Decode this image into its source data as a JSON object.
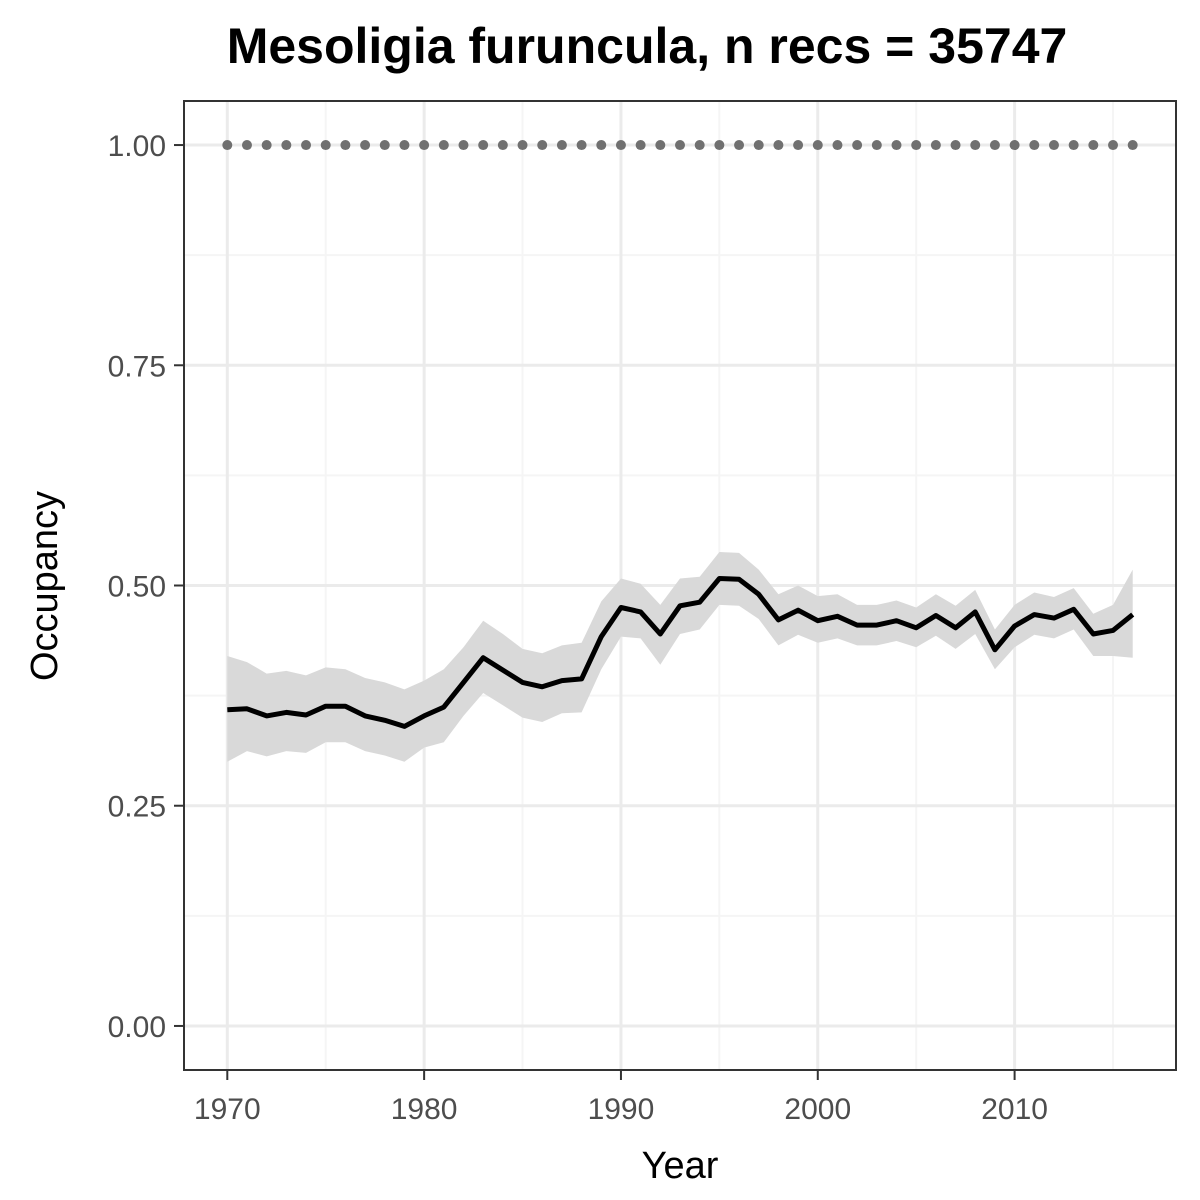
{
  "chart_data": {
    "type": "line",
    "title": "Mesoligia furuncula, n recs = 35747",
    "xlabel": "Year",
    "ylabel": "Occupancy",
    "xlim": [
      1967.8,
      2018.2
    ],
    "ylim": [
      -0.05,
      1.05
    ],
    "x_ticks": [
      1970,
      1980,
      1990,
      2000,
      2010
    ],
    "x_tick_labels": [
      "1970",
      "1980",
      "1990",
      "2000",
      "2010"
    ],
    "y_ticks": [
      0,
      0.25,
      0.5,
      0.75,
      1.0
    ],
    "y_tick_labels": [
      "0.00",
      "0.25",
      "0.50",
      "0.75",
      "1.00"
    ],
    "x_minor_grid": [
      1975,
      1985,
      1995,
      2005,
      2015
    ],
    "y_minor_grid": [
      0.125,
      0.375,
      0.625,
      0.875
    ],
    "grid": true,
    "x": [
      1970,
      1971,
      1972,
      1973,
      1974,
      1975,
      1976,
      1977,
      1978,
      1979,
      1980,
      1981,
      1982,
      1983,
      1984,
      1985,
      1986,
      1987,
      1988,
      1989,
      1990,
      1991,
      1992,
      1993,
      1994,
      1995,
      1996,
      1997,
      1998,
      1999,
      2000,
      2001,
      2002,
      2003,
      2004,
      2005,
      2006,
      2007,
      2008,
      2009,
      2010,
      2011,
      2012,
      2013,
      2014,
      2015,
      2016
    ],
    "series": [
      {
        "role": "mean",
        "color": "#000000",
        "values": [
          0.359,
          0.36,
          0.352,
          0.356,
          0.353,
          0.363,
          0.363,
          0.352,
          0.347,
          0.34,
          0.352,
          0.362,
          0.39,
          0.418,
          0.404,
          0.39,
          0.385,
          0.392,
          0.394,
          0.442,
          0.475,
          0.47,
          0.445,
          0.477,
          0.481,
          0.508,
          0.507,
          0.49,
          0.461,
          0.472,
          0.46,
          0.465,
          0.455,
          0.455,
          0.46,
          0.452,
          0.466,
          0.452,
          0.47,
          0.427,
          0.454,
          0.467,
          0.463,
          0.473,
          0.445,
          0.449,
          0.467
        ]
      },
      {
        "role": "credible-interval-lower",
        "color": "#d9d9d9",
        "values": [
          0.3,
          0.312,
          0.306,
          0.312,
          0.31,
          0.322,
          0.322,
          0.312,
          0.307,
          0.3,
          0.316,
          0.322,
          0.352,
          0.378,
          0.364,
          0.35,
          0.345,
          0.355,
          0.356,
          0.405,
          0.442,
          0.44,
          0.41,
          0.445,
          0.45,
          0.478,
          0.477,
          0.462,
          0.432,
          0.444,
          0.435,
          0.44,
          0.432,
          0.432,
          0.437,
          0.43,
          0.443,
          0.428,
          0.445,
          0.405,
          0.43,
          0.444,
          0.44,
          0.45,
          0.42,
          0.42,
          0.418
        ]
      },
      {
        "role": "credible-interval-upper",
        "color": "#d9d9d9",
        "values": [
          0.42,
          0.413,
          0.4,
          0.403,
          0.398,
          0.407,
          0.405,
          0.395,
          0.39,
          0.382,
          0.392,
          0.405,
          0.43,
          0.46,
          0.445,
          0.428,
          0.423,
          0.432,
          0.435,
          0.482,
          0.508,
          0.502,
          0.478,
          0.508,
          0.51,
          0.538,
          0.537,
          0.518,
          0.49,
          0.5,
          0.488,
          0.49,
          0.478,
          0.478,
          0.483,
          0.475,
          0.49,
          0.477,
          0.495,
          0.45,
          0.478,
          0.492,
          0.487,
          0.497,
          0.468,
          0.478,
          0.518
        ]
      },
      {
        "role": "reference-line",
        "style": "dotted",
        "color": "#707070",
        "constant": 1.0
      }
    ],
    "colors": {
      "panel_border": "#333333",
      "grid_major": "#ebebeb",
      "grid_minor": "#f5f5f5",
      "tick_label": "#4d4d4d"
    }
  }
}
